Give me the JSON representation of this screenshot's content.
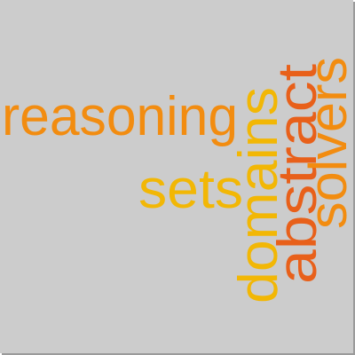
{
  "words": {
    "reasoning": {
      "text": "reasoning",
      "color": "#f28c10"
    },
    "sets": {
      "text": "sets",
      "color": "#f2b705"
    },
    "domains": {
      "text": "domains",
      "color": "#f2b705"
    },
    "abstract": {
      "text": "abstract",
      "color": "#e8601a"
    },
    "solvers": {
      "text": "solvers",
      "color": "#f28c10"
    }
  },
  "colors": {
    "background": "#cccccc"
  }
}
